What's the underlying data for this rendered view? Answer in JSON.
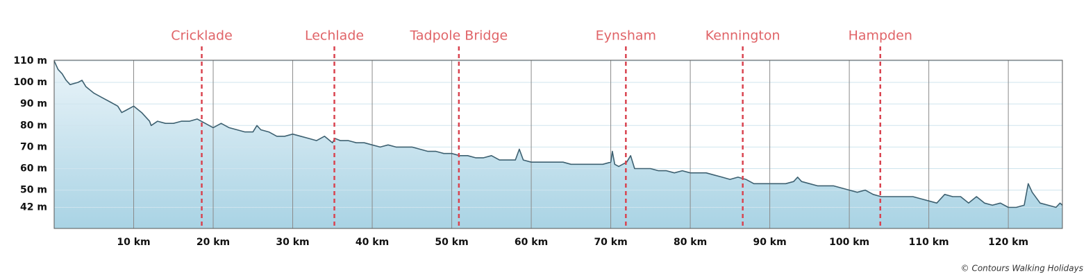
{
  "chart_data": {
    "type": "area",
    "x": [
      0,
      0.5,
      1,
      1.5,
      2,
      3,
      3.5,
      4,
      5,
      6,
      7,
      8,
      8.5,
      9,
      10,
      11,
      12,
      12.2,
      13,
      14,
      15,
      16,
      17,
      18,
      19,
      20,
      21,
      22,
      23,
      24,
      25,
      25.5,
      26,
      27,
      28,
      29,
      30,
      31,
      32,
      33,
      34,
      35,
      35.3,
      36,
      37,
      38,
      39,
      40,
      41,
      42,
      43,
      44,
      45,
      46,
      47,
      48,
      49,
      50,
      51,
      52,
      53,
      54,
      55,
      56,
      57,
      58,
      58.5,
      59,
      60,
      61,
      62,
      63,
      64,
      65,
      66,
      67,
      68,
      69,
      70,
      70.2,
      70.5,
      71,
      72,
      72.5,
      73,
      74,
      75,
      76,
      77,
      78,
      79,
      80,
      81,
      82,
      83,
      84,
      85,
      86,
      87,
      88,
      89,
      90,
      91,
      92,
      93,
      93.5,
      94,
      95,
      96,
      97,
      98,
      99,
      100,
      101,
      102,
      103,
      104,
      105,
      106,
      107,
      108,
      109,
      110,
      111,
      112,
      113,
      114,
      115,
      116,
      117,
      118,
      119,
      120,
      121,
      122,
      122.5,
      123,
      124,
      125,
      126,
      126.5,
      126.8
    ],
    "values": [
      110,
      106,
      104,
      101,
      99,
      100,
      101,
      98,
      95,
      93,
      91,
      89,
      86,
      87,
      89,
      86,
      82,
      80,
      82,
      81,
      81,
      82,
      82,
      83,
      81,
      79,
      81,
      79,
      78,
      77,
      77,
      80,
      78,
      77,
      75,
      75,
      76,
      75,
      74,
      73,
      75,
      72,
      74,
      73,
      73,
      72,
      72,
      71,
      70,
      71,
      70,
      70,
      70,
      69,
      68,
      68,
      67,
      67,
      66,
      66,
      65,
      65,
      66,
      64,
      64,
      64,
      69,
      64,
      63,
      63,
      63,
      63,
      63,
      62,
      62,
      62,
      62,
      62,
      63,
      68,
      62,
      61,
      63,
      66,
      60,
      60,
      60,
      59,
      59,
      58,
      59,
      58,
      58,
      58,
      57,
      56,
      55,
      56,
      55,
      53,
      53,
      53,
      53,
      53,
      54,
      56,
      54,
      53,
      52,
      52,
      52,
      51,
      50,
      49,
      50,
      48,
      47,
      47,
      47,
      47,
      47,
      46,
      45,
      44,
      48,
      47,
      47,
      44,
      47,
      44,
      43,
      44,
      42,
      42,
      43,
      53,
      49,
      44,
      43,
      42,
      44,
      43
    ],
    "color": "#3d6070",
    "xlim": [
      0,
      126.8
    ],
    "ylim": [
      32.2,
      110.3
    ],
    "xticks": [
      {
        "value": 10,
        "label": "10 km"
      },
      {
        "value": 20,
        "label": "20 km"
      },
      {
        "value": 30,
        "label": "30 km"
      },
      {
        "value": 40,
        "label": "40 km"
      },
      {
        "value": 50,
        "label": "50 km"
      },
      {
        "value": 60,
        "label": "60 km"
      },
      {
        "value": 70,
        "label": "70 km"
      },
      {
        "value": 80,
        "label": "80 km"
      },
      {
        "value": 90,
        "label": "90 km"
      },
      {
        "value": 100,
        "label": "100 km"
      },
      {
        "value": 110,
        "label": "110 km"
      },
      {
        "value": 120,
        "label": "120 km"
      }
    ],
    "yticks": [
      {
        "value": 42,
        "label": "42 m"
      },
      {
        "value": 50,
        "label": "50 m"
      },
      {
        "value": 60,
        "label": "60 m"
      },
      {
        "value": 70,
        "label": "70 m"
      },
      {
        "value": 80,
        "label": "80 m"
      },
      {
        "value": 90,
        "label": "90 m"
      },
      {
        "value": 100,
        "label": "100 m"
      },
      {
        "value": 110,
        "label": "110 m"
      }
    ],
    "grid": true,
    "annotations": [
      {
        "label": "Cricklade",
        "x": 18.56
      },
      {
        "label": "Lechlade",
        "x": 35.24
      },
      {
        "label": "Tadpole Bridge",
        "x": 50.9
      },
      {
        "label": "Eynsham",
        "x": 71.9
      },
      {
        "label": "Kennington",
        "x": 86.6
      },
      {
        "label": "Hampden",
        "x": 103.9
      }
    ],
    "credit": "© Contours Walking Holidays"
  }
}
